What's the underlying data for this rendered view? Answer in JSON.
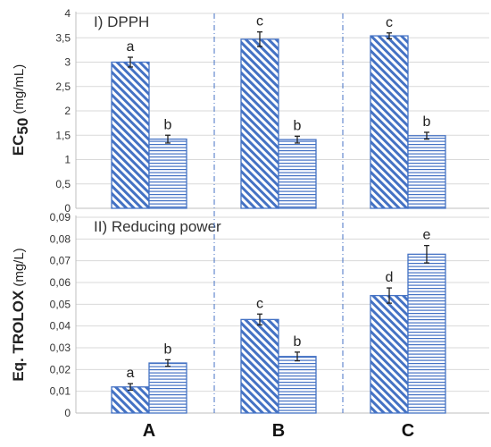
{
  "chart_data": [
    {
      "type": "bar",
      "title": "I) DPPH",
      "ylabel_main": "EC",
      "ylabel_sub": "50",
      "ylabel_unit": "(mg/mL)",
      "ylim": [
        0,
        4
      ],
      "yticks": [
        "0",
        "0,5",
        "1",
        "1,5",
        "2",
        "2,5",
        "3",
        "3,5",
        "4"
      ],
      "categories": [
        "A",
        "B",
        "C"
      ],
      "grid": true,
      "series": [
        {
          "pattern": "diagonal",
          "values": [
            3.0,
            3.47,
            3.54
          ],
          "errors": [
            0.1,
            0.15,
            0.06
          ],
          "labels": [
            "a",
            "c",
            "c"
          ]
        },
        {
          "pattern": "horizontal",
          "values": [
            1.42,
            1.41,
            1.49
          ],
          "errors": [
            0.08,
            0.07,
            0.07
          ],
          "labels": [
            "b",
            "b",
            "b"
          ]
        }
      ]
    },
    {
      "type": "bar",
      "title": "II) Reducing power",
      "ylabel_bold": "Eq. TROLOX",
      "ylabel_unit": "(mg/L)",
      "ylim": [
        0,
        0.09
      ],
      "yticks": [
        "0",
        "0,01",
        "0,02",
        "0,03",
        "0,04",
        "0,05",
        "0,06",
        "0,07",
        "0,08",
        "0,09"
      ],
      "categories": [
        "A",
        "B",
        "C"
      ],
      "grid": true,
      "series": [
        {
          "pattern": "diagonal",
          "values": [
            0.012,
            0.043,
            0.054
          ],
          "errors": [
            0.0015,
            0.0025,
            0.0035
          ],
          "labels": [
            "a",
            "c",
            "d"
          ]
        },
        {
          "pattern": "horizontal",
          "values": [
            0.023,
            0.026,
            0.073
          ],
          "errors": [
            0.0015,
            0.002,
            0.004
          ],
          "labels": [
            "b",
            "b",
            "e"
          ]
        }
      ]
    }
  ],
  "colors": {
    "bar_stroke": "#4472C4",
    "separator": "#4472C4",
    "grid": "#d9d9d9"
  }
}
